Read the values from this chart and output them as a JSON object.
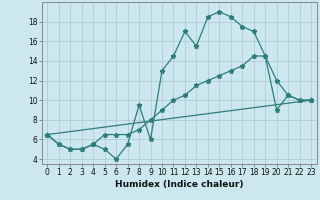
{
  "xlabel": "Humidex (Indice chaleur)",
  "background_color": "#cce8ee",
  "grid_color": "#b0cdd4",
  "line_color": "#2e7d7a",
  "xlim": [
    -0.5,
    23.5
  ],
  "ylim": [
    3.5,
    20.0
  ],
  "yticks": [
    4,
    6,
    8,
    10,
    12,
    14,
    16,
    18
  ],
  "xticks": [
    0,
    1,
    2,
    3,
    4,
    5,
    6,
    7,
    8,
    9,
    10,
    11,
    12,
    13,
    14,
    15,
    16,
    17,
    18,
    19,
    20,
    21,
    22,
    23
  ],
  "series1_x": [
    0,
    1,
    2,
    3,
    4,
    5,
    6,
    7,
    8,
    9,
    10,
    11,
    12,
    13,
    14,
    15,
    16,
    17,
    18,
    19,
    20,
    21,
    22,
    23
  ],
  "series1_y": [
    6.5,
    5.5,
    5.0,
    5.0,
    5.5,
    5.0,
    4.0,
    5.5,
    9.5,
    6.0,
    13.0,
    14.5,
    17.0,
    15.5,
    18.5,
    19.0,
    18.5,
    17.5,
    17.0,
    14.5,
    12.0,
    10.5,
    10.0,
    10.0
  ],
  "series2_x": [
    0,
    1,
    2,
    3,
    4,
    5,
    6,
    7,
    8,
    9,
    10,
    11,
    12,
    13,
    14,
    15,
    16,
    17,
    18,
    19,
    20,
    21,
    22,
    23
  ],
  "series2_y": [
    6.5,
    5.5,
    5.0,
    5.0,
    5.5,
    6.5,
    6.5,
    6.5,
    7.0,
    8.0,
    9.0,
    10.0,
    10.5,
    11.5,
    12.0,
    12.5,
    13.0,
    13.5,
    14.5,
    14.5,
    9.0,
    10.5,
    10.0,
    10.0
  ],
  "series3_x": [
    0,
    23
  ],
  "series3_y": [
    6.5,
    10.0
  ]
}
